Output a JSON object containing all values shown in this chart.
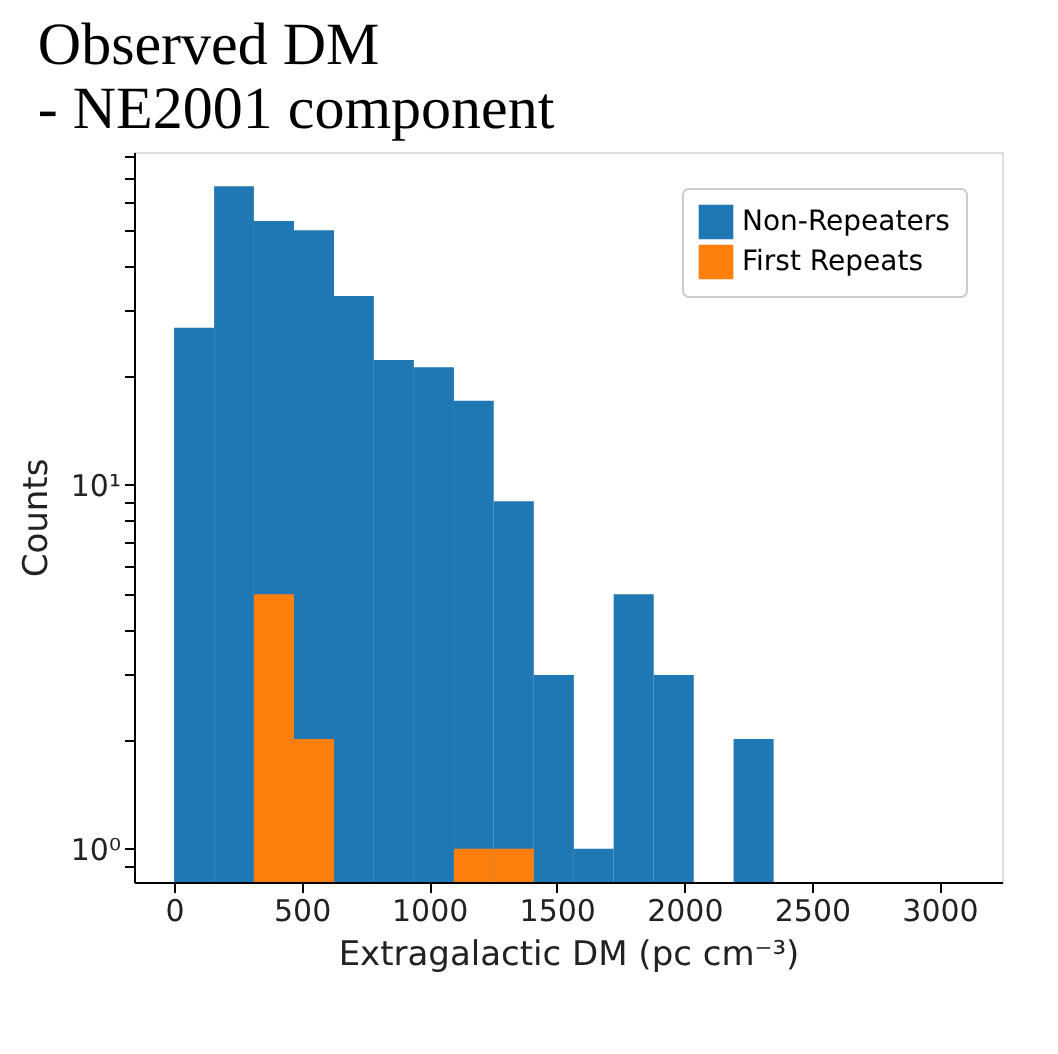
{
  "chart_data": {
    "type": "histogram",
    "title": [
      "Observed DM",
      " - NE2001 component"
    ],
    "xlabel": "Extragalactic DM (pc cm⁻³)",
    "ylabel": "Counts",
    "bins": [
      0,
      157,
      313,
      470,
      627,
      783,
      940,
      1097,
      1253,
      1410,
      1567,
      1723,
      1880,
      2037,
      2193,
      2350
    ],
    "series": [
      {
        "name": "Non-Repeaters",
        "color": "#1f77b4",
        "values": [
          27,
          66,
          53,
          50,
          33,
          22,
          21,
          17,
          9,
          3,
          1,
          5,
          3,
          null,
          2
        ]
      },
      {
        "name": "First Repeats",
        "color": "#ff7f0e",
        "values": [
          null,
          null,
          5,
          2,
          null,
          null,
          null,
          1,
          1,
          null,
          null,
          null,
          null,
          null,
          null
        ]
      }
    ],
    "log": true,
    "xlim": [
      -157,
      3245
    ],
    "xticks": [
      0,
      500,
      1000,
      1500,
      2000,
      2500,
      3000
    ],
    "ylim": [
      0.81,
      82
    ],
    "yticks": [
      {
        "value": 0.9,
        "label": null
      },
      {
        "value": 1,
        "label": "10⁰"
      },
      {
        "value": 2,
        "label": null
      },
      {
        "value": 3,
        "label": null
      },
      {
        "value": 4,
        "label": null
      },
      {
        "value": 5,
        "label": null
      },
      {
        "value": 6,
        "label": null
      },
      {
        "value": 7,
        "label": null
      },
      {
        "value": 8,
        "label": null
      },
      {
        "value": 9,
        "label": null
      },
      {
        "value": 10,
        "label": "10¹"
      },
      {
        "value": 20,
        "label": null
      },
      {
        "value": 30,
        "label": null
      },
      {
        "value": 40,
        "label": null
      },
      {
        "value": 50,
        "label": null
      },
      {
        "value": 60,
        "label": null
      },
      {
        "value": 70,
        "label": null
      },
      {
        "value": 80,
        "label": null
      }
    ],
    "grid": false,
    "legend": "top right"
  }
}
